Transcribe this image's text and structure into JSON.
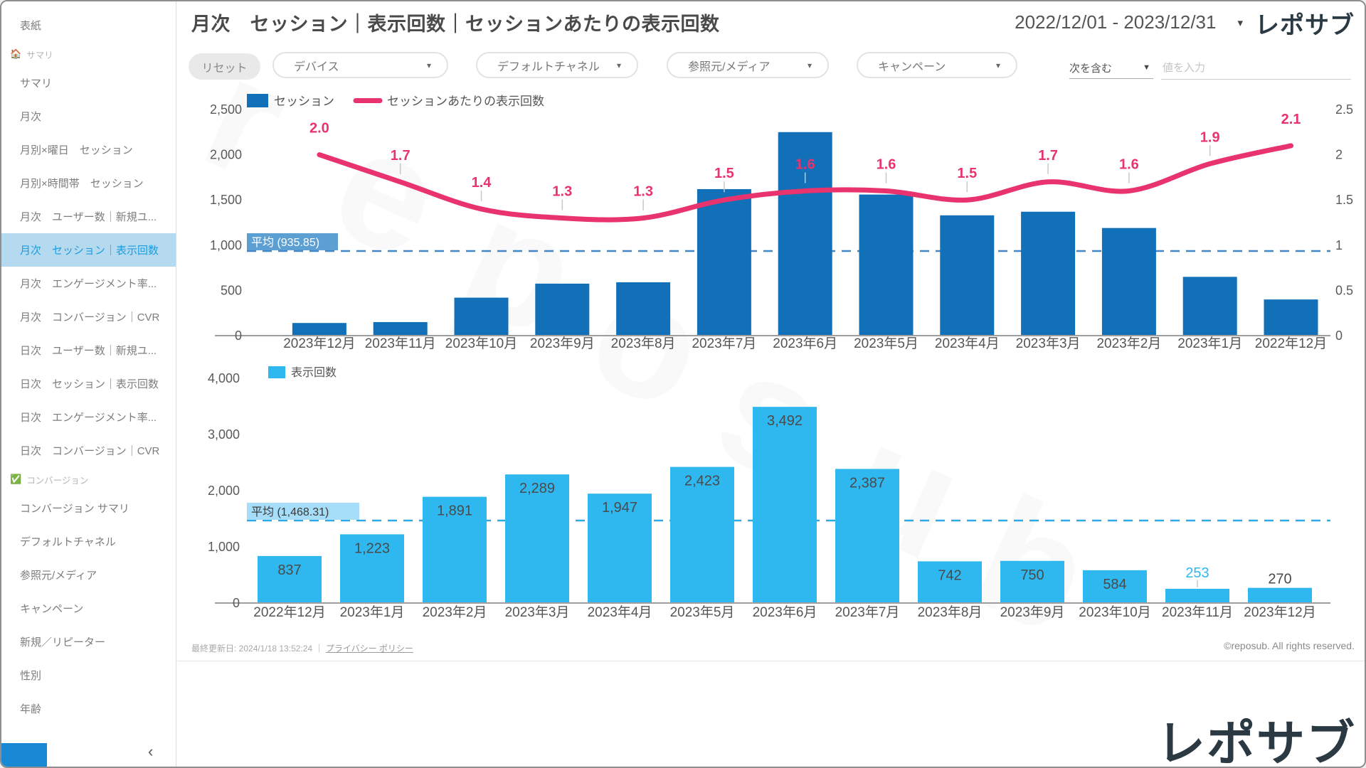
{
  "header": {
    "title": "月次　セッション｜表示回数｜セッションあたりの表示回数",
    "date_range": "2022/12/01 - 2023/12/31",
    "brand": "レポサブ"
  },
  "icons": {
    "dropdown_caret": "▾",
    "select_caret": "▼",
    "collapse": "‹"
  },
  "filters": {
    "reset_label": "リセット",
    "dropdowns": [
      {
        "label": "デバイス"
      },
      {
        "label": "デフォルトチャネル"
      },
      {
        "label": "参照元/メディア"
      },
      {
        "label": "キャンペーン"
      }
    ],
    "match_type": "次を含む",
    "value_placeholder": "値を入力"
  },
  "sidebar": {
    "entries": [
      {
        "type": "item",
        "label": "表紙"
      },
      {
        "type": "section",
        "icon": "🏠",
        "label": "サマリ"
      },
      {
        "type": "item",
        "label": "サマリ"
      },
      {
        "type": "item",
        "label": "月次"
      },
      {
        "type": "item",
        "label": "月別×曜日　セッション"
      },
      {
        "type": "item",
        "label": "月別×時間帯　セッション"
      },
      {
        "type": "item",
        "label": "月次　ユーザー数｜新規ユ..."
      },
      {
        "type": "item",
        "label": "月次　セッション｜表示回数",
        "selected": true
      },
      {
        "type": "item",
        "label": "月次　エンゲージメント率..."
      },
      {
        "type": "item",
        "label": "月次　コンバージョン｜CVR"
      },
      {
        "type": "item",
        "label": "日次　ユーザー数｜新規ユ..."
      },
      {
        "type": "item",
        "label": "日次　セッション｜表示回数"
      },
      {
        "type": "item",
        "label": "日次　エンゲージメント率..."
      },
      {
        "type": "item",
        "label": "日次　コンバージョン｜CVR"
      },
      {
        "type": "section",
        "icon": "✅",
        "label": "コンバージョン"
      },
      {
        "type": "item",
        "label": "コンバージョン サマリ"
      },
      {
        "type": "item",
        "label": "デフォルトチャネル"
      },
      {
        "type": "item",
        "label": "参照元/メディア"
      },
      {
        "type": "item",
        "label": "キャンペーン"
      },
      {
        "type": "item",
        "label": "新規／リピーター"
      },
      {
        "type": "item",
        "label": "性別"
      },
      {
        "type": "item",
        "label": "年齢"
      }
    ]
  },
  "chart_data": [
    {
      "type": "bar+line",
      "categories": [
        "2023年12月",
        "2023年11月",
        "2023年10月",
        "2023年9月",
        "2023年8月",
        "2023年7月",
        "2023年6月",
        "2023年5月",
        "2023年4月",
        "2023年3月",
        "2023年2月",
        "2023年1月",
        "2022年12月"
      ],
      "series": [
        {
          "name": "セッション",
          "kind": "bar",
          "color": "#1170B8",
          "values": [
            140,
            150,
            420,
            575,
            590,
            1620,
            2250,
            1560,
            1330,
            1370,
            1190,
            650,
            400
          ]
        },
        {
          "name": "セッションあたりの表示回数",
          "kind": "line",
          "color": "#E8336E",
          "values": [
            2.0,
            1.7,
            1.4,
            1.3,
            1.3,
            1.5,
            1.6,
            1.6,
            1.5,
            1.7,
            1.6,
            1.9,
            2.1
          ],
          "labels": [
            "2.0",
            "1.7",
            "1.4",
            "1.3",
            "1.3",
            "1.5",
            "1.6",
            "1.6",
            "1.5",
            "1.7",
            "1.6",
            "1.9",
            "2.1"
          ]
        }
      ],
      "left_axis": {
        "ticks": [
          "0",
          "500",
          "1,000",
          "1,500",
          "2,000",
          "2,500"
        ],
        "max": 2500
      },
      "right_axis": {
        "ticks": [
          "0",
          "0.5",
          "1",
          "1.5",
          "2",
          "2.5"
        ],
        "max": 2.5
      },
      "average": {
        "label": "平均 (935.85)",
        "value": 935.85
      },
      "legend_position": "top-left",
      "grid": false
    },
    {
      "type": "bar",
      "categories": [
        "2022年12月",
        "2023年1月",
        "2023年2月",
        "2023年3月",
        "2023年4月",
        "2023年5月",
        "2023年6月",
        "2023年7月",
        "2023年8月",
        "2023年9月",
        "2023年10月",
        "2023年11月",
        "2023年12月"
      ],
      "series": [
        {
          "name": "表示回数",
          "kind": "bar",
          "color": "#2FB8F0",
          "values": [
            837,
            1223,
            1891,
            2289,
            1947,
            2423,
            3492,
            2387,
            742,
            750,
            584,
            253,
            270
          ],
          "labels": [
            "837",
            "1,223",
            "1,891",
            "2,289",
            "1,947",
            "2,423",
            "3,492",
            "2,387",
            "742",
            "750",
            "584",
            "253",
            "270"
          ]
        }
      ],
      "left_axis": {
        "ticks": [
          "0",
          "1,000",
          "2,000",
          "3,000",
          "4,000"
        ],
        "max": 4000
      },
      "average": {
        "label": "平均 (1,468.31)",
        "value": 1468.31
      },
      "legend_position": "top-left",
      "grid": false
    }
  ],
  "footer": {
    "last_updated": "最終更新日: 2024/1/18 13:52:24",
    "separator": "｜",
    "privacy_link": "プライバシー ポリシー",
    "copyright": "©reposub. All rights reserved.",
    "brand_large": "レポサブ"
  },
  "watermark": "reposub",
  "colors": {
    "bar_dark_blue": "#1170B8",
    "bar_light_blue": "#2FB8F0",
    "line_pink": "#E8336E",
    "avg_badge_dark": "#5C9FD3",
    "avg_line_dark": "#3F87C9",
    "avg_badge_light": "#A6DDF8",
    "avg_line_light": "#2EA9E8",
    "selected_bg": "#B5D9EE",
    "selected_text": "#1B9DE0",
    "sidebar_accent": "#1989D6"
  }
}
